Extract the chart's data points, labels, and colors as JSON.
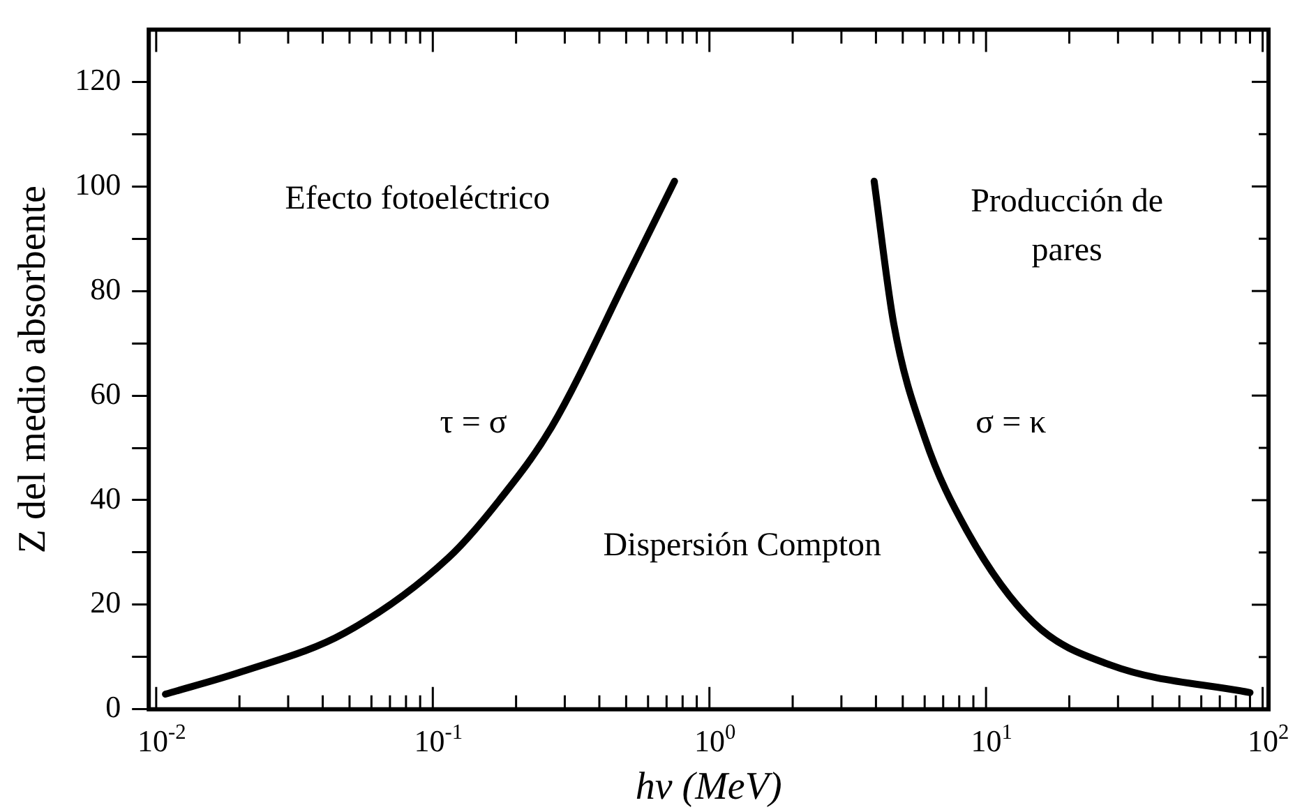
{
  "chart_data": {
    "type": "line",
    "xlabel": "hν (MeV)",
    "ylabel": "Z del medio absorbente",
    "log": "x",
    "grid": false,
    "legend": false,
    "marker": "none",
    "line_style": "solid",
    "xlim": [
      0.0094,
      105
    ],
    "ylim": [
      0,
      130
    ],
    "xticks": [
      {
        "value": 0.01,
        "label": "10$^{-2}$"
      },
      {
        "value": 0.02,
        "label": null
      },
      {
        "value": 0.03,
        "label": null
      },
      {
        "value": 0.04,
        "label": null
      },
      {
        "value": 0.05,
        "label": null
      },
      {
        "value": 0.06,
        "label": null
      },
      {
        "value": 0.07,
        "label": null
      },
      {
        "value": 0.08,
        "label": null
      },
      {
        "value": 0.09,
        "label": null
      },
      {
        "value": 0.1,
        "label": "10$^{-1}$"
      },
      {
        "value": 0.2,
        "label": null
      },
      {
        "value": 0.3,
        "label": null
      },
      {
        "value": 0.4,
        "label": null
      },
      {
        "value": 0.5,
        "label": null
      },
      {
        "value": 0.6,
        "label": null
      },
      {
        "value": 0.7,
        "label": null
      },
      {
        "value": 0.8,
        "label": null
      },
      {
        "value": 0.9,
        "label": null
      },
      {
        "value": 1,
        "label": "10$^{0}$"
      },
      {
        "value": 2,
        "label": null
      },
      {
        "value": 3,
        "label": null
      },
      {
        "value": 4,
        "label": null
      },
      {
        "value": 5,
        "label": null
      },
      {
        "value": 6,
        "label": null
      },
      {
        "value": 7,
        "label": null
      },
      {
        "value": 8,
        "label": null
      },
      {
        "value": 9,
        "label": null
      },
      {
        "value": 10,
        "label": "10$^{1}$"
      },
      {
        "value": 20,
        "label": null
      },
      {
        "value": 30,
        "label": null
      },
      {
        "value": 40,
        "label": null
      },
      {
        "value": 50,
        "label": null
      },
      {
        "value": 60,
        "label": null
      },
      {
        "value": 70,
        "label": null
      },
      {
        "value": 80,
        "label": null
      },
      {
        "value": 90,
        "label": null
      },
      {
        "value": 100,
        "label": "10$^{2}$"
      }
    ],
    "yticks": [
      0,
      {
        "value": 10,
        "label": null
      },
      20,
      {
        "value": 30,
        "label": null
      },
      40,
      {
        "value": 50,
        "label": null
      },
      60,
      {
        "value": 70,
        "label": null
      },
      80,
      {
        "value": 90,
        "label": null
      },
      100,
      {
        "value": 110,
        "label": null
      },
      120
    ],
    "series": [
      {
        "color": "#000000",
        "x": [
          0.0108,
          0.0204,
          0.048,
          0.114,
          0.174,
          0.269,
          0.513,
          0.748
        ],
        "values": [
          2.9,
          7.2,
          14.6,
          29,
          40,
          54,
          83.5,
          101
        ]
      },
      {
        "color": "#000000",
        "x": [
          3.94,
          4.64,
          6.0,
          8.5,
          14.9,
          28.1,
          90
        ],
        "values": [
          101,
          73.7,
          52,
          34.3,
          16.5,
          8.5,
          3.2
        ]
      }
    ],
    "annotations": [
      "Efecto fotoeléctrico",
      "Producción de\npares",
      "Dispersión Compton",
      "τ = σ",
      "σ = κ"
    ]
  }
}
